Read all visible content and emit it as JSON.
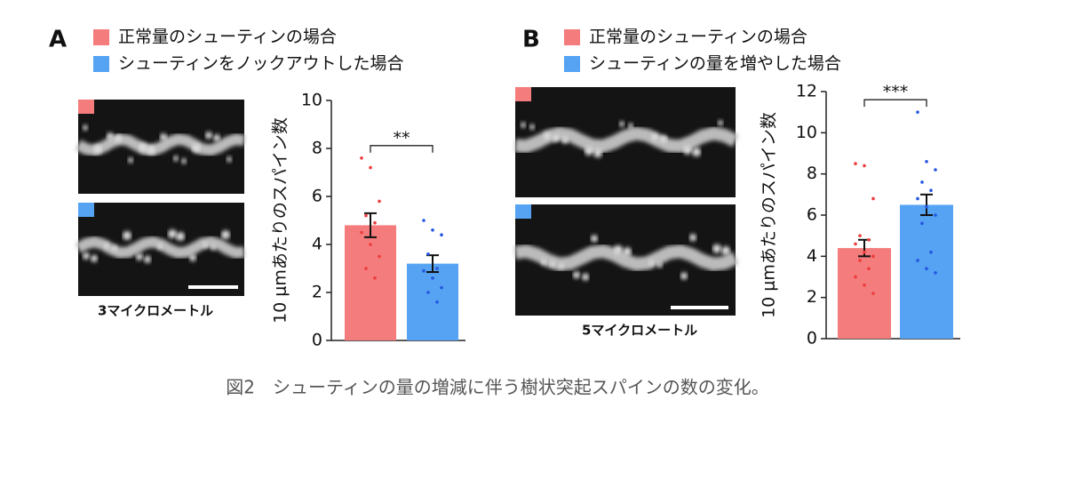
{
  "chart_data": [
    {
      "type": "bar",
      "panel": "A",
      "ylabel": "10 μmあたりのスパイン数",
      "scale_label": "3マイクロメートル",
      "significance": "**",
      "ylim": [
        0,
        10
      ],
      "yticks": [
        0,
        2,
        4,
        6,
        8,
        10
      ],
      "series": [
        {
          "name": "正常量のシューティンの場合",
          "color": "#f47c7c",
          "point_color": "#ee3b3b",
          "values": [
            4.8
          ],
          "errors": [
            0.5
          ],
          "points": [
            7.6,
            7.2,
            5.8,
            5.2,
            4.9,
            4.5,
            4.0,
            3.5,
            3.0,
            2.6
          ]
        },
        {
          "name": "シューティンをノックアウトした場合",
          "color": "#55a3f2",
          "point_color": "#2457e0",
          "values": [
            3.2
          ],
          "errors": [
            0.35
          ],
          "points": [
            5.0,
            4.6,
            4.4,
            3.6,
            3.0,
            2.9,
            2.6,
            2.2,
            2.0,
            1.6
          ]
        }
      ]
    },
    {
      "type": "bar",
      "panel": "B",
      "ylabel": "10 μmあたりのスパイン数",
      "scale_label": "5マイクロメートル",
      "significance": "***",
      "ylim": [
        0,
        12
      ],
      "yticks": [
        0,
        2,
        4,
        6,
        8,
        10,
        12
      ],
      "series": [
        {
          "name": "正常量のシューティンの場合",
          "color": "#f47c7c",
          "point_color": "#ee3b3b",
          "values": [
            4.4
          ],
          "errors": [
            0.4
          ],
          "points": [
            8.5,
            8.4,
            6.8,
            5.0,
            4.8,
            4.6,
            4.2,
            4.0,
            3.8,
            3.4,
            3.0,
            2.6,
            2.2
          ]
        },
        {
          "name": "シューティンの量を増やした場合",
          "color": "#55a3f2",
          "point_color": "#2457e0",
          "values": [
            6.5
          ],
          "errors": [
            0.5
          ],
          "points": [
            11.0,
            8.6,
            8.2,
            7.6,
            7.2,
            6.8,
            6.4,
            6.0,
            5.6,
            4.2,
            3.8,
            3.4,
            3.2
          ]
        }
      ]
    }
  ],
  "caption": "図2　シューティンの量の増減に伴う樹状突起スパインの数の変化。"
}
